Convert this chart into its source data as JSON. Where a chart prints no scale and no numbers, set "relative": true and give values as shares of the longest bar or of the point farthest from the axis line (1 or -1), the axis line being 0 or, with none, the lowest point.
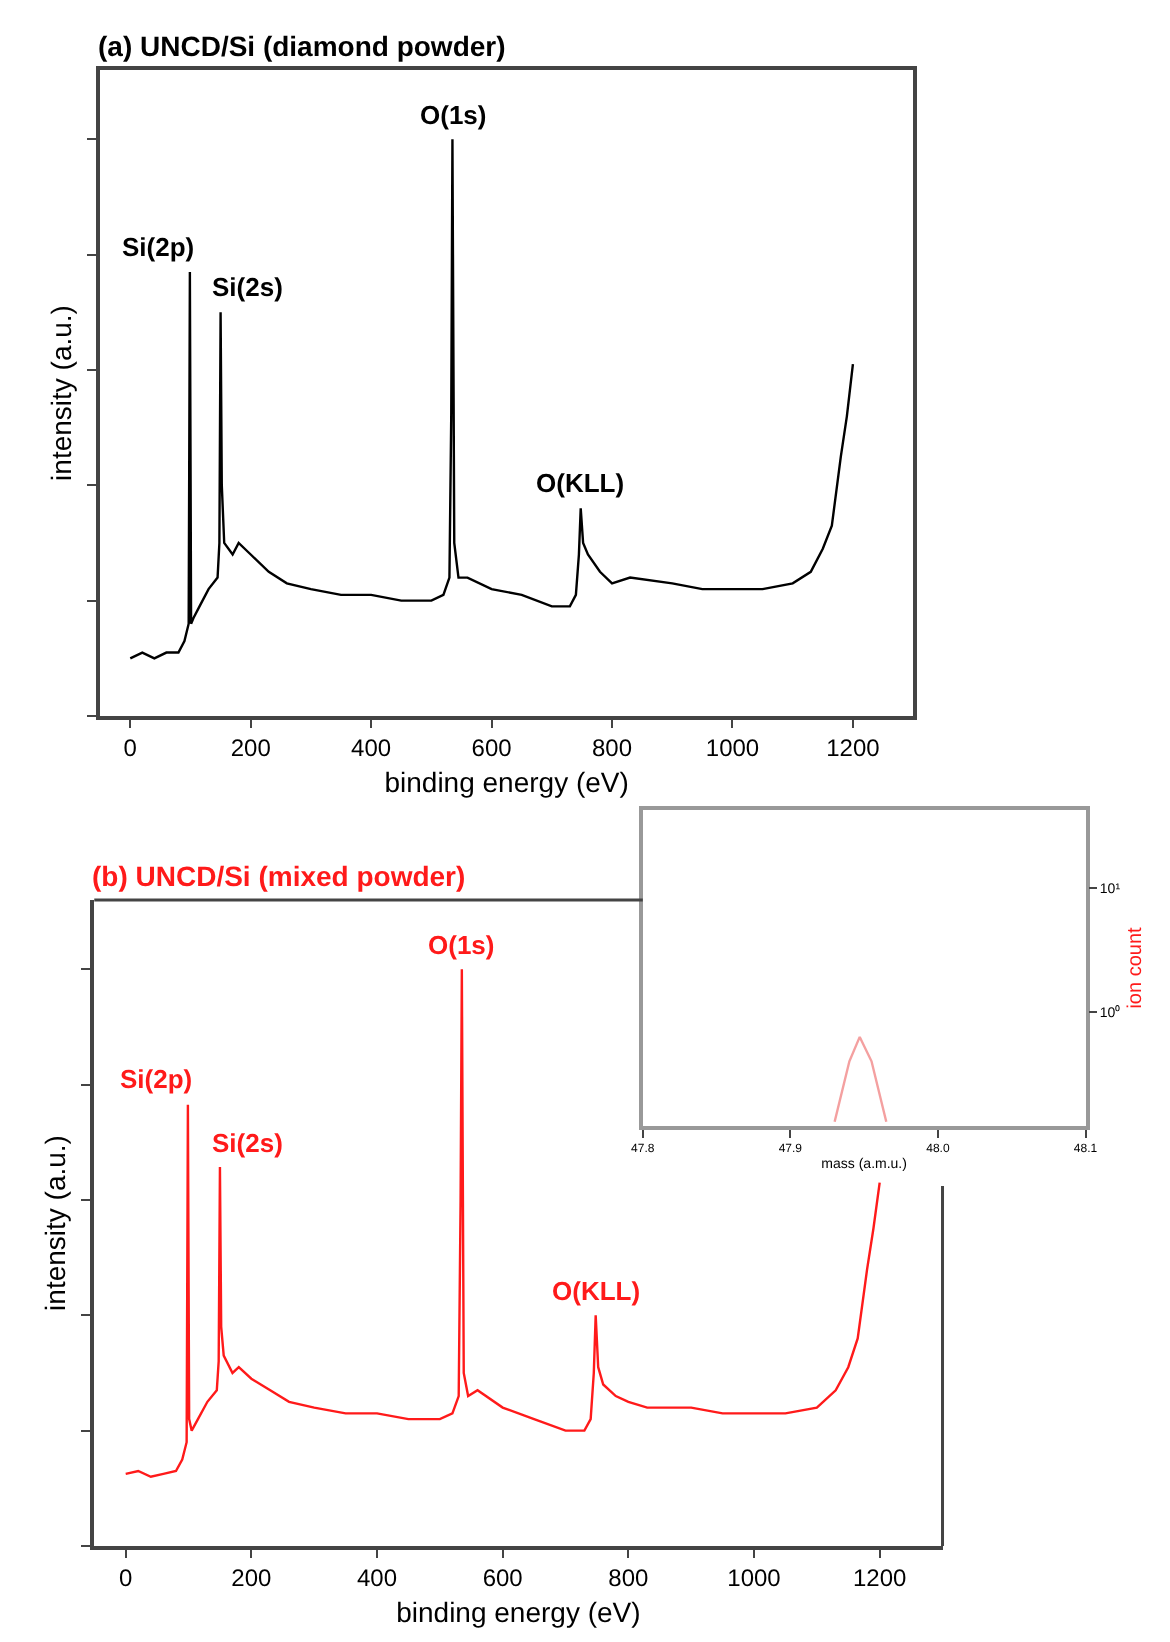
{
  "chart_data": [
    {
      "type": "line",
      "title": "(a) UNCD/Si (diamond powder)",
      "xlabel": "binding energy (eV)",
      "ylabel": "intensity (a.u.)",
      "relative": true,
      "xlim": [
        -50,
        1300
      ],
      "xticks": [
        0,
        200,
        400,
        600,
        800,
        1000,
        1200
      ],
      "tick_labels": "x",
      "x": [
        0,
        20,
        40,
        60,
        80,
        90,
        97,
        99,
        101,
        105,
        115,
        130,
        145,
        148,
        150,
        152,
        156,
        170,
        180,
        200,
        230,
        260,
        300,
        350,
        400,
        450,
        500,
        520,
        530,
        533,
        535,
        538,
        545,
        560,
        600,
        650,
        700,
        730,
        740,
        745,
        748,
        752,
        760,
        780,
        800,
        830,
        900,
        950,
        1000,
        1050,
        1100,
        1130,
        1150,
        1165,
        1180,
        1190,
        1200
      ],
      "series": [
        {
          "color": "#000000",
          "values": [
            0.1,
            0.11,
            0.1,
            0.11,
            0.11,
            0.13,
            0.16,
            0.77,
            0.16,
            0.17,
            0.19,
            0.22,
            0.24,
            0.3,
            0.7,
            0.4,
            0.3,
            0.28,
            0.3,
            0.28,
            0.25,
            0.23,
            0.22,
            0.21,
            0.21,
            0.2,
            0.2,
            0.21,
            0.24,
            0.52,
            1.0,
            0.3,
            0.24,
            0.24,
            0.22,
            0.21,
            0.19,
            0.19,
            0.21,
            0.28,
            0.36,
            0.3,
            0.28,
            0.25,
            0.23,
            0.24,
            0.23,
            0.22,
            0.22,
            0.22,
            0.23,
            0.25,
            0.29,
            0.33,
            0.45,
            0.52,
            0.61
          ]
        }
      ],
      "annotations": [
        {
          "text": "Si(2p)",
          "x": 99,
          "y": 0.77
        },
        {
          "text": "Si(2s)",
          "x": 150,
          "y": 0.7
        },
        {
          "text": "O(1s)",
          "x": 535,
          "y": 1.0
        },
        {
          "text": "O(KLL)",
          "x": 748,
          "y": 0.36
        }
      ]
    },
    {
      "type": "line",
      "title": "(b) UNCD/Si (mixed powder)",
      "xlabel": "binding energy (eV)",
      "ylabel": "intensity (a.u.)",
      "relative": true,
      "xlim": [
        -50,
        1300
      ],
      "xticks": [
        0,
        200,
        400,
        600,
        800,
        1000,
        1200
      ],
      "tick_labels": "x",
      "x": [
        0,
        20,
        40,
        60,
        80,
        90,
        97,
        99,
        101,
        105,
        115,
        130,
        145,
        148,
        150,
        152,
        156,
        170,
        180,
        200,
        230,
        260,
        300,
        350,
        400,
        450,
        500,
        520,
        530,
        533,
        535,
        538,
        545,
        560,
        600,
        650,
        700,
        730,
        740,
        745,
        748,
        752,
        760,
        780,
        800,
        830,
        900,
        950,
        1000,
        1050,
        1100,
        1130,
        1150,
        1165,
        1180,
        1190,
        1200
      ],
      "series": [
        {
          "color": "#ff1a1a",
          "values": [
            0.125,
            0.13,
            0.12,
            0.125,
            0.13,
            0.15,
            0.18,
            0.765,
            0.22,
            0.2,
            0.22,
            0.25,
            0.27,
            0.32,
            0.657,
            0.38,
            0.33,
            0.3,
            0.31,
            0.29,
            0.27,
            0.25,
            0.24,
            0.23,
            0.23,
            0.22,
            0.22,
            0.23,
            0.26,
            0.6,
            1.0,
            0.3,
            0.26,
            0.27,
            0.24,
            0.22,
            0.2,
            0.2,
            0.22,
            0.3,
            0.4,
            0.31,
            0.28,
            0.26,
            0.25,
            0.24,
            0.24,
            0.23,
            0.23,
            0.23,
            0.24,
            0.27,
            0.31,
            0.36,
            0.48,
            0.55,
            0.63
          ]
        }
      ],
      "annotations": [
        {
          "text": "Si(2p)",
          "x": 99,
          "y": 0.765
        },
        {
          "text": "Si(2s)",
          "x": 150,
          "y": 0.657
        },
        {
          "text": "O(1s)",
          "x": 535,
          "y": 1.0
        },
        {
          "text": "O(KLL)",
          "x": 748,
          "y": 0.4
        }
      ]
    },
    {
      "type": "line",
      "xlabel": "mass (a.m.u.)",
      "ylabel": "ion count",
      "log": "y",
      "xlim": [
        47.8,
        48.1
      ],
      "xticks": [
        47.8,
        47.9,
        {
          "value": 48.0,
          "label": "48.0"
        },
        48.1
      ],
      "ylim": [
        0.12,
        43
      ],
      "yticks": [
        {
          "value": 1,
          "label": "10⁰"
        },
        {
          "value": 10,
          "label": "10¹"
        }
      ],
      "x": [
        47.93,
        47.94,
        47.947,
        47.955,
        47.965
      ],
      "series": [
        {
          "color": "#f4a0a0",
          "values": [
            0.13,
            0.4,
            0.63,
            0.4,
            0.13
          ]
        }
      ]
    }
  ]
}
